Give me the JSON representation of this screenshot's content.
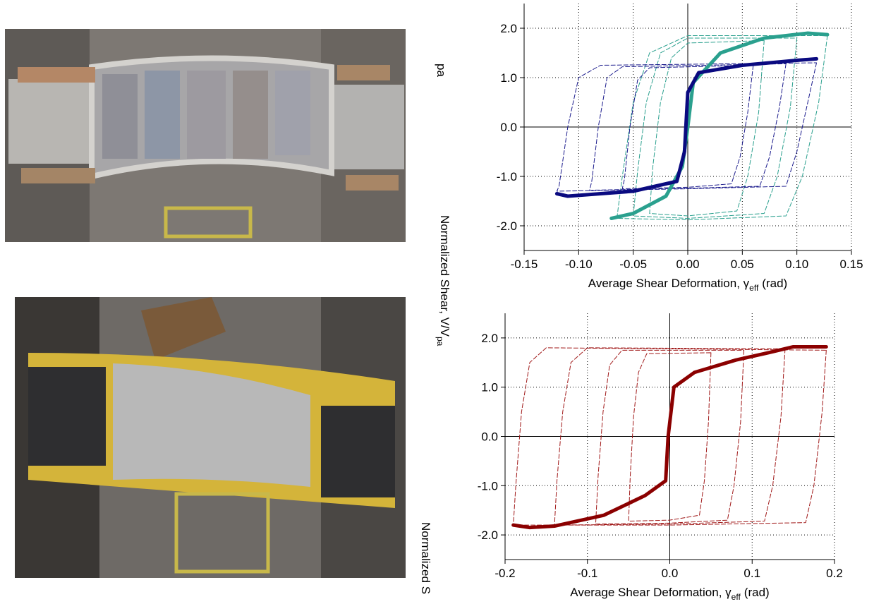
{
  "chart_data": [
    {
      "type": "line",
      "ylabel": "Normalized Shear, V/V",
      "ylabel_sub": "pa",
      "xlabel": "Average Shear Deformation, γ",
      "xlabel_sub": "eff",
      "xlabel_tail": "(rad)",
      "xlim": [
        -0.15,
        0.15
      ],
      "xticks": [
        -0.15,
        {
          "value": -0.1,
          "label": "-0.10"
        },
        -0.05,
        {
          "value": 0,
          "label": "0.00"
        },
        0.05,
        {
          "value": 0.1,
          "label": "0.10"
        },
        0.15
      ],
      "ylim": [
        -2.5,
        2.5
      ],
      "yticks": [
        {
          "value": -2,
          "label": "-2.0"
        },
        {
          "value": -1,
          "label": "-1.0"
        },
        {
          "value": 0,
          "label": "0.0"
        },
        {
          "value": 1,
          "label": "1.0"
        },
        {
          "value": 2,
          "label": "2.0"
        }
      ],
      "grid": true,
      "series": [
        {
          "color": "#2aa08e",
          "dash": true,
          "x": [
            0.128,
            0.12,
            0.105,
            0.09,
            0.0,
            -0.065,
            -0.06,
            -0.05,
            -0.035,
            0.0,
            0.128
          ],
          "values": [
            1.85,
            0.5,
            -1.0,
            -1.8,
            -1.88,
            -1.85,
            -1.0,
            0.5,
            1.5,
            1.85,
            1.85
          ]
        },
        {
          "color": "#2aa08e",
          "dash": true,
          "x": [
            0.1,
            0.094,
            0.082,
            0.07,
            0.0,
            -0.05,
            -0.046,
            -0.038,
            -0.025,
            0.0,
            0.1
          ],
          "values": [
            1.8,
            0.4,
            -1.0,
            -1.75,
            -1.85,
            -1.8,
            -0.9,
            0.5,
            1.5,
            1.8,
            1.8
          ]
        },
        {
          "color": "#2aa08e",
          "dash": true,
          "x": [
            0.07,
            0.065,
            0.055,
            0.045,
            0.0,
            -0.035,
            -0.032,
            -0.025,
            -0.015,
            0.0,
            0.07
          ],
          "values": [
            1.75,
            0.3,
            -1.0,
            -1.7,
            -1.8,
            -1.75,
            -0.8,
            0.5,
            1.4,
            1.7,
            1.75
          ]
        },
        {
          "color": "#1a1a8c",
          "dash": true,
          "x": [
            0.118,
            0.11,
            0.1,
            0.09,
            0.0,
            -0.12,
            -0.118,
            -0.11,
            -0.1,
            -0.08,
            0.118
          ],
          "values": [
            1.3,
            0.5,
            -0.5,
            -1.2,
            -1.25,
            -1.3,
            -1.2,
            0.0,
            1.0,
            1.25,
            1.3
          ]
        },
        {
          "color": "#1a1a8c",
          "dash": true,
          "x": [
            0.09,
            0.084,
            0.075,
            0.066,
            0.0,
            -0.09,
            -0.088,
            -0.082,
            -0.074,
            -0.06,
            0.09
          ],
          "values": [
            1.28,
            0.4,
            -0.6,
            -1.2,
            -1.24,
            -1.28,
            -1.1,
            0.0,
            1.0,
            1.22,
            1.28
          ]
        },
        {
          "color": "#1a1a8c",
          "dash": true,
          "x": [
            0.06,
            0.055,
            0.048,
            0.04,
            0.0,
            -0.06,
            -0.058,
            -0.053,
            -0.046,
            -0.035,
            0.06
          ],
          "values": [
            1.25,
            0.3,
            -0.6,
            -1.15,
            -1.22,
            -1.25,
            -1.05,
            0.0,
            0.95,
            1.2,
            1.25
          ]
        },
        {
          "color": "#2aa08e",
          "dash": false,
          "width": 5,
          "x": [
            -0.07,
            -0.05,
            -0.02,
            -0.005,
            0.0,
            0.005,
            0.03,
            0.07,
            0.11,
            0.128
          ],
          "values": [
            -1.85,
            -1.75,
            -1.4,
            -0.8,
            0.0,
            0.9,
            1.5,
            1.8,
            1.9,
            1.87
          ]
        },
        {
          "color": "#0a0a80",
          "dash": false,
          "width": 5,
          "x": [
            -0.12,
            -0.11,
            -0.05,
            -0.01,
            -0.003,
            0.0,
            0.01,
            0.05,
            0.1,
            0.118
          ],
          "values": [
            -1.35,
            -1.4,
            -1.3,
            -1.1,
            -0.5,
            0.7,
            1.1,
            1.25,
            1.35,
            1.38
          ]
        }
      ]
    },
    {
      "type": "line",
      "ylabel": "Normalized S",
      "xlabel": "Average Shear Deformation, γ",
      "xlabel_sub": "eff",
      "xlabel_tail": "(rad)",
      "xlim": [
        -0.2,
        0.2
      ],
      "xticks": [
        -0.2,
        -0.1,
        {
          "value": 0,
          "label": "0.0"
        },
        0.1,
        0.2
      ],
      "ylim": [
        -2.5,
        2.5
      ],
      "yticks": [
        {
          "value": -2,
          "label": "-2.0"
        },
        {
          "value": -1,
          "label": "-1.0"
        },
        {
          "value": 0,
          "label": "0.0"
        },
        {
          "value": 1,
          "label": "1.0"
        },
        {
          "value": 2,
          "label": "2.0"
        }
      ],
      "grid": true,
      "series": [
        {
          "color": "#a01818",
          "dash": true,
          "x": [
            0.19,
            0.185,
            0.175,
            0.165,
            0.0,
            -0.19,
            -0.187,
            -0.18,
            -0.17,
            -0.15,
            0.19
          ],
          "values": [
            1.75,
            0.5,
            -1.0,
            -1.75,
            -1.8,
            -1.8,
            -1.0,
            0.5,
            1.5,
            1.8,
            1.75
          ]
        },
        {
          "color": "#a01818",
          "dash": true,
          "x": [
            0.14,
            0.135,
            0.125,
            0.115,
            0.0,
            -0.14,
            -0.137,
            -0.13,
            -0.12,
            -0.1,
            0.14
          ],
          "values": [
            1.78,
            0.4,
            -1.0,
            -1.72,
            -1.78,
            -1.8,
            -0.9,
            0.5,
            1.5,
            1.8,
            1.78
          ]
        },
        {
          "color": "#a01818",
          "dash": true,
          "x": [
            0.09,
            0.086,
            0.078,
            0.07,
            0.0,
            -0.09,
            -0.087,
            -0.081,
            -0.073,
            -0.058,
            0.09
          ],
          "values": [
            1.75,
            0.3,
            -1.0,
            -1.7,
            -1.76,
            -1.78,
            -0.8,
            0.5,
            1.45,
            1.75,
            1.75
          ]
        },
        {
          "color": "#a01818",
          "dash": true,
          "x": [
            0.05,
            0.047,
            0.042,
            0.036,
            0.0,
            -0.05,
            -0.048,
            -0.044,
            -0.038,
            -0.028,
            0.05
          ],
          "values": [
            1.7,
            0.3,
            -0.9,
            -1.6,
            -1.7,
            -1.72,
            -0.8,
            0.4,
            1.3,
            1.68,
            1.7
          ]
        },
        {
          "color": "#8b0000",
          "dash": false,
          "width": 5,
          "x": [
            -0.19,
            -0.17,
            -0.14,
            -0.08,
            -0.03,
            -0.005,
            -0.002,
            0.005,
            0.03,
            0.08,
            0.12,
            0.15,
            0.19
          ],
          "values": [
            -1.8,
            -1.85,
            -1.82,
            -1.6,
            -1.2,
            -0.9,
            0.0,
            1.0,
            1.3,
            1.55,
            1.7,
            1.82,
            1.82
          ]
        }
      ]
    }
  ]
}
